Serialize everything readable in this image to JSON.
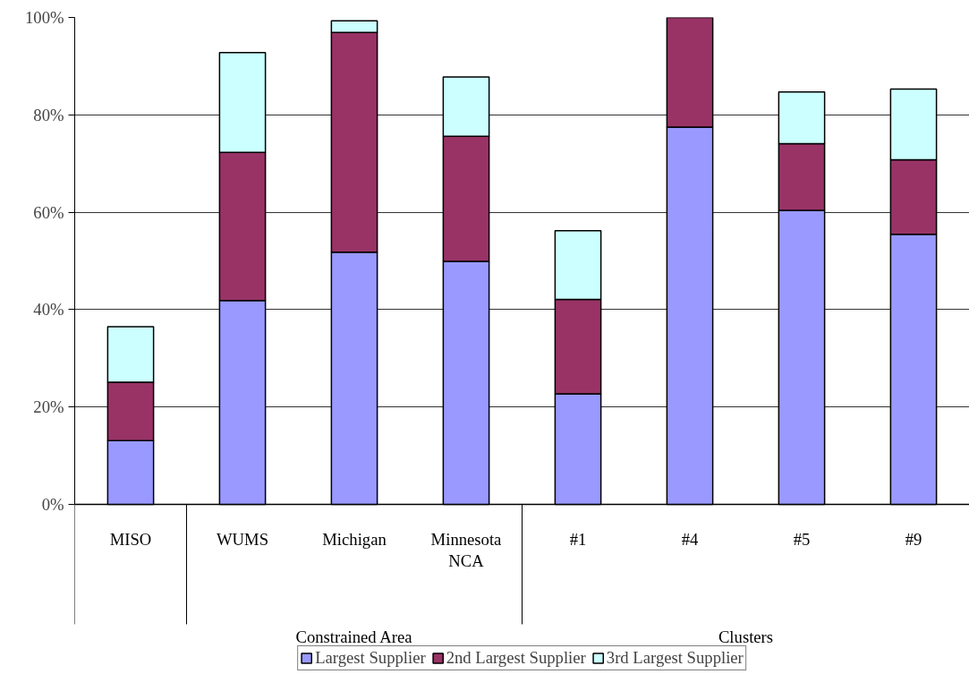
{
  "chart_data": {
    "type": "bar",
    "stacked": true,
    "categories": [
      "MISO",
      "WUMS",
      "Michigan",
      "Minnesota NCA",
      "#1",
      "#4",
      "#5",
      "#9"
    ],
    "series": [
      {
        "name": "Largest Supplier",
        "color": "#9999ff",
        "values": [
          13.1,
          41.9,
          51.8,
          49.9,
          22.7,
          77.5,
          60.4,
          55.5
        ]
      },
      {
        "name": "2nd Largest Supplier",
        "color": "#993366",
        "values": [
          12.0,
          30.4,
          45.1,
          25.7,
          19.4,
          22.5,
          13.7,
          15.3
        ]
      },
      {
        "name": "3rd Largest Supplier",
        "color": "#ccffff",
        "values": [
          11.4,
          20.5,
          2.4,
          12.2,
          14.1,
          null,
          10.6,
          14.5
        ]
      }
    ],
    "ylim": [
      0,
      100
    ],
    "yticks": [
      {
        "value": 0,
        "label": "0%"
      },
      {
        "value": 20,
        "label": "20%"
      },
      {
        "value": 40,
        "label": "40%"
      },
      {
        "value": 60,
        "label": "60%"
      },
      {
        "value": 80,
        "label": "80%"
      },
      {
        "value": 100,
        "label": "100%"
      }
    ],
    "grid": "y",
    "legend": "bottom",
    "annotations": [
      "Constrained Area",
      "Clusters"
    ]
  }
}
